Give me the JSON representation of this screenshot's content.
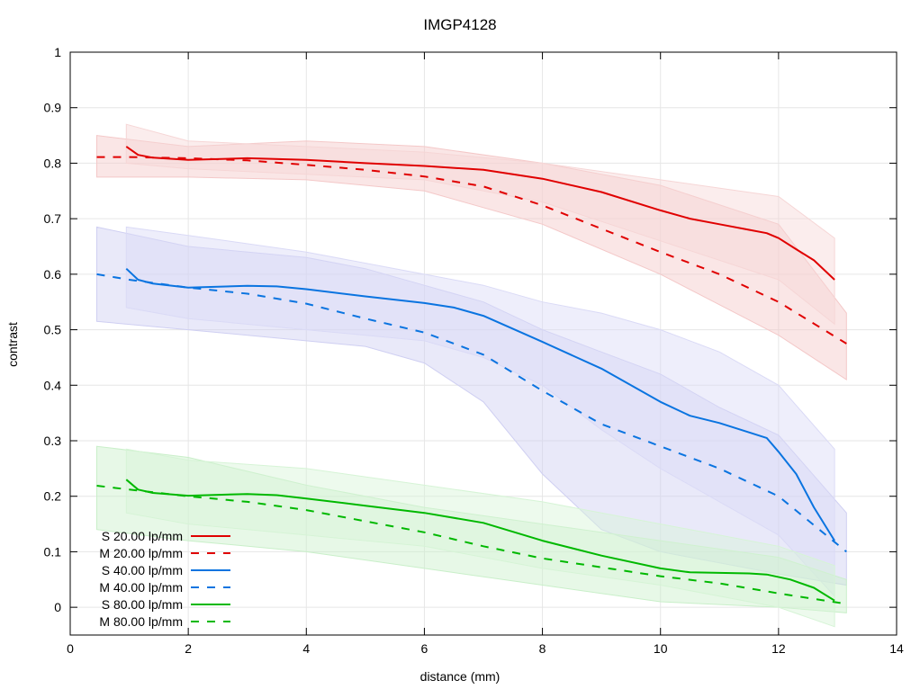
{
  "chart_data": {
    "type": "line",
    "title": "IMGP4128",
    "xlabel": "distance (mm)",
    "ylabel": "contrast",
    "xlim": [
      0,
      14
    ],
    "ylim": [
      -0.05,
      1
    ],
    "xticks": [
      "0",
      "2",
      "4",
      "6",
      "8",
      "10",
      "12",
      "14"
    ],
    "yticks": [
      "0",
      "0.1",
      "0.2",
      "0.3",
      "0.4",
      "0.5",
      "0.6",
      "0.7",
      "0.8",
      "0.9",
      "1"
    ],
    "grid": true,
    "legend_position": "bottom-left",
    "bands": [
      {
        "color": "#f4c8c8",
        "x": [
          0.45,
          2,
          4,
          6,
          8,
          10,
          12,
          13.15
        ],
        "upper": [
          0.85,
          0.83,
          0.84,
          0.83,
          0.8,
          0.76,
          0.69,
          0.53
        ],
        "lower": [
          0.775,
          0.775,
          0.77,
          0.75,
          0.69,
          0.6,
          0.49,
          0.41
        ]
      },
      {
        "color": "#f6d6d6",
        "x": [
          0.95,
          2,
          4,
          6,
          8,
          10,
          12,
          12.95
        ],
        "upper": [
          0.87,
          0.84,
          0.83,
          0.82,
          0.8,
          0.77,
          0.74,
          0.665
        ],
        "lower": [
          0.8,
          0.79,
          0.78,
          0.77,
          0.73,
          0.66,
          0.59,
          0.51
        ]
      },
      {
        "color": "#cfcff2",
        "x": [
          0.45,
          2,
          4,
          5,
          6,
          7,
          8,
          9,
          10,
          11,
          12,
          13.15
        ],
        "upper": [
          0.685,
          0.65,
          0.63,
          0.61,
          0.58,
          0.55,
          0.5,
          0.46,
          0.42,
          0.36,
          0.31,
          0.17
        ],
        "lower": [
          0.515,
          0.5,
          0.48,
          0.47,
          0.44,
          0.37,
          0.24,
          0.14,
          0.1,
          0.08,
          0.06,
          0.04
        ]
      },
      {
        "color": "#dadaf6",
        "x": [
          0.95,
          2,
          4,
          6,
          7,
          8,
          9,
          10,
          11,
          12,
          12.95
        ],
        "upper": [
          0.685,
          0.67,
          0.64,
          0.6,
          0.58,
          0.55,
          0.53,
          0.5,
          0.46,
          0.4,
          0.285
        ],
        "lower": [
          0.54,
          0.52,
          0.5,
          0.48,
          0.45,
          0.4,
          0.32,
          0.25,
          0.19,
          0.13,
          0.02
        ]
      },
      {
        "color": "#c9efc9",
        "x": [
          0.45,
          2,
          4,
          6,
          8,
          10,
          12,
          13.15
        ],
        "upper": [
          0.29,
          0.27,
          0.22,
          0.18,
          0.15,
          0.12,
          0.09,
          0.05
        ],
        "lower": [
          0.14,
          0.12,
          0.1,
          0.07,
          0.04,
          0.01,
          0.0,
          -0.01
        ]
      },
      {
        "color": "#d6f4d6",
        "x": [
          0.95,
          2,
          4,
          6,
          8,
          10,
          12,
          12.95
        ],
        "upper": [
          0.285,
          0.265,
          0.25,
          0.22,
          0.19,
          0.15,
          0.11,
          0.075
        ],
        "lower": [
          0.17,
          0.15,
          0.13,
          0.11,
          0.07,
          0.04,
          0.0,
          -0.035
        ]
      }
    ],
    "series": [
      {
        "name": "S 20.00 lp/mm",
        "color": "#e00000",
        "dash": false,
        "x": [
          0.95,
          1.15,
          1.4,
          2,
          3,
          4,
          5,
          6,
          7,
          8,
          9,
          10,
          10.5,
          11,
          11.5,
          11.8,
          12,
          12.3,
          12.6,
          12.95
        ],
        "y": [
          0.83,
          0.815,
          0.81,
          0.806,
          0.809,
          0.806,
          0.8,
          0.795,
          0.788,
          0.772,
          0.748,
          0.715,
          0.7,
          0.69,
          0.68,
          0.674,
          0.665,
          0.645,
          0.625,
          0.59
        ]
      },
      {
        "name": "M 20.00 lp/mm",
        "color": "#e00000",
        "dash": true,
        "x": [
          0.45,
          1,
          2,
          3,
          4,
          5,
          6,
          7,
          8,
          9,
          10,
          11,
          12,
          13.15
        ],
        "y": [
          0.811,
          0.811,
          0.809,
          0.805,
          0.797,
          0.788,
          0.776,
          0.758,
          0.724,
          0.682,
          0.64,
          0.6,
          0.55,
          0.475
        ]
      },
      {
        "name": "S 40.00 lp/mm",
        "color": "#0a74e0",
        "dash": false,
        "x": [
          0.95,
          1.15,
          1.4,
          2,
          3,
          3.5,
          4,
          5,
          6,
          6.5,
          7,
          8,
          9,
          10,
          10.5,
          11,
          11.5,
          11.8,
          12,
          12.3,
          12.6,
          12.95
        ],
        "y": [
          0.61,
          0.59,
          0.583,
          0.576,
          0.579,
          0.578,
          0.573,
          0.56,
          0.548,
          0.54,
          0.525,
          0.478,
          0.43,
          0.37,
          0.345,
          0.332,
          0.315,
          0.305,
          0.28,
          0.24,
          0.18,
          0.12
        ]
      },
      {
        "name": "M 40.00 lp/mm",
        "color": "#0a74e0",
        "dash": true,
        "x": [
          0.45,
          1,
          2,
          3,
          4,
          5,
          6,
          7,
          8,
          9,
          10,
          11,
          12,
          13.15
        ],
        "y": [
          0.6,
          0.59,
          0.576,
          0.565,
          0.547,
          0.52,
          0.495,
          0.455,
          0.39,
          0.33,
          0.29,
          0.25,
          0.2,
          0.1
        ]
      },
      {
        "name": "S 80.00 lp/mm",
        "color": "#00b800",
        "dash": false,
        "x": [
          0.95,
          1.15,
          1.4,
          2,
          3,
          3.5,
          4,
          5,
          6,
          7,
          8,
          9,
          10,
          10.5,
          11,
          11.5,
          11.8,
          12.2,
          12.6,
          12.95
        ],
        "y": [
          0.23,
          0.212,
          0.206,
          0.201,
          0.204,
          0.202,
          0.196,
          0.183,
          0.17,
          0.152,
          0.12,
          0.093,
          0.07,
          0.063,
          0.062,
          0.061,
          0.059,
          0.05,
          0.035,
          0.012
        ]
      },
      {
        "name": "M 80.00 lp/mm",
        "color": "#00b800",
        "dash": true,
        "x": [
          0.45,
          1,
          2,
          3,
          4,
          5,
          6,
          7,
          8,
          9,
          10,
          11,
          12,
          13.15
        ],
        "y": [
          0.219,
          0.212,
          0.2,
          0.19,
          0.175,
          0.155,
          0.135,
          0.11,
          0.088,
          0.072,
          0.056,
          0.043,
          0.025,
          0.006
        ]
      }
    ]
  }
}
